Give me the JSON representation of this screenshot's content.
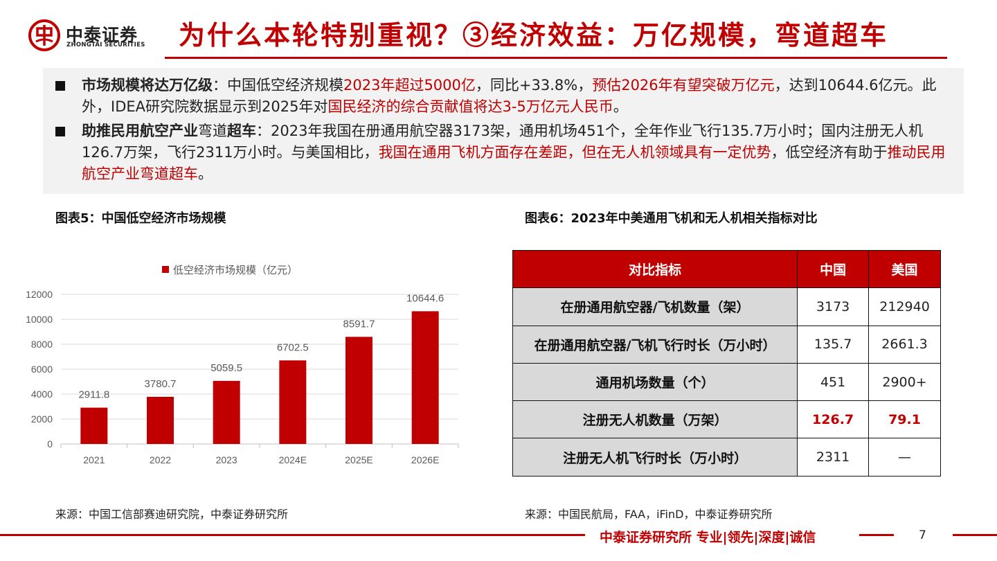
{
  "header": {
    "logo_cn": "中泰证券",
    "logo_en": "ZHONGTAI SECURITIES",
    "title": "为什么本轮特别重视？③经济效益：万亿规模，弯道超车"
  },
  "summary": {
    "bullet1": {
      "lead": "市场规模将达万亿级",
      "t1": "：中国低空经济规模",
      "r1": "2023年超过5000亿",
      "t2": "，同比+33.8%，",
      "r2": "预估2026年有望突破万亿元",
      "t3": "，达到10644.6亿元。此外，IDEA研究院数据显示到2025年对",
      "r3": "国民经济的综合贡献值将达3-5万亿元人民币",
      "t4": "。"
    },
    "bullet2": {
      "lead": "助推民用航空产业",
      "t1": "弯道",
      "lead2": "超车",
      "t2": "：2023年我国在册通用航空器3173架，通用机场451个，全年作业飞行135.7万小时；国内注册无人机126.7万架，飞行2311万小时。与美国相比，",
      "r1": "我国在通用飞机方面存在差距，但在无人机领域具有一定优势",
      "t3": "，低空经济有助于",
      "r2": "推动民用航空产业弯道超车",
      "t4": "。"
    }
  },
  "figure5": {
    "title": "图表5：中国低空经济市场规模",
    "source": "来源：中国工信部赛迪研究院，中泰证券研究所"
  },
  "figure6": {
    "title": "图表6：2023年中美通用飞机和无人机相关指标对比",
    "source": "来源：中国民航局，FAA，iFinD，中泰证券研究所"
  },
  "chart_data": {
    "type": "bar",
    "categories": [
      "2021",
      "2022",
      "2023",
      "2024E",
      "2025E",
      "2026E"
    ],
    "series": [
      {
        "name": "低空经济市场规模（亿元）",
        "values": [
          2911.8,
          3780.7,
          5059.5,
          6702.5,
          8591.7,
          10644.6
        ]
      }
    ],
    "data_labels": [
      "2911.8",
      "3780.7",
      "5059.5",
      "6702.5",
      "8591.7",
      "10644.6"
    ],
    "yticks": [
      "0",
      "2000",
      "4000",
      "6000",
      "8000",
      "10000",
      "12000"
    ],
    "ylim": [
      0,
      12000
    ],
    "grid": true,
    "legend_position": "top-center",
    "bar_color": "#c00000"
  },
  "table": {
    "headers": [
      "对比指标",
      "中国",
      "美国"
    ],
    "rows": [
      {
        "metric": "在册通用航空器/飞机数量（架）",
        "china": "3173",
        "usa": "212940"
      },
      {
        "metric": "在册通用航空器/飞机飞行时长（万小时）",
        "china": "135.7",
        "usa": "2661.3"
      },
      {
        "metric": "通用机场数量（个）",
        "china": "451",
        "usa": "2900+"
      },
      {
        "metric": "注册无人机数量（万架）",
        "china": "126.7",
        "usa": "79.1"
      },
      {
        "metric": "注册无人机飞行时长（万小时）",
        "china": "2311",
        "usa": "—"
      }
    ]
  },
  "footer": {
    "text": "中泰证券研究所 专业|领先|深度|诚信",
    "page": "7"
  },
  "colors": {
    "accent": "#c00000",
    "panel": "#f2f2f2",
    "table_metric_bg": "#d9d9d9"
  }
}
